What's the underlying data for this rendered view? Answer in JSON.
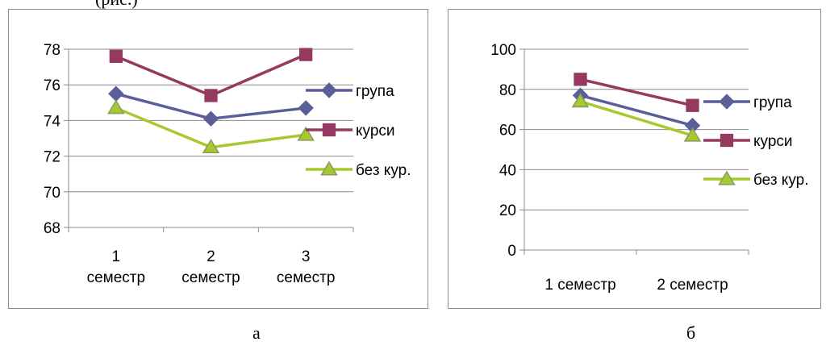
{
  "caption_fragment": "(рис.)",
  "panel_labels": [
    "а",
    "б"
  ],
  "colors": {
    "група": "#5b5f97",
    "курси": "#953a5e",
    "без кур.": "#a6c92f",
    "axis": "#8c8c8c",
    "grid": "#8c8c8c"
  },
  "chart_data": [
    {
      "type": "line",
      "title": "",
      "xlabel": "",
      "ylabel": "",
      "categories": [
        [
          "1",
          "семестр"
        ],
        [
          "2",
          "семестр"
        ],
        [
          "3",
          "семестр"
        ]
      ],
      "ylim": [
        68,
        78
      ],
      "yticks": [
        68,
        70,
        72,
        74,
        76,
        78
      ],
      "grid": true,
      "legend": "right",
      "series": [
        {
          "name": "група",
          "marker": "diamond",
          "values": [
            75.5,
            74.1,
            74.7
          ]
        },
        {
          "name": "курси",
          "marker": "square",
          "values": [
            77.6,
            75.4,
            77.7
          ]
        },
        {
          "name": "без кур.",
          "marker": "triangle",
          "values": [
            74.7,
            72.5,
            73.2
          ]
        }
      ]
    },
    {
      "type": "line",
      "title": "",
      "xlabel": "",
      "ylabel": "",
      "categories": [
        [
          "1 семестр"
        ],
        [
          "2 семестр"
        ]
      ],
      "ylim": [
        0,
        100
      ],
      "yticks": [
        0,
        20,
        40,
        60,
        80,
        100
      ],
      "grid": true,
      "legend": "right",
      "series": [
        {
          "name": "група",
          "marker": "diamond",
          "values": [
            77,
            62
          ]
        },
        {
          "name": "курси",
          "marker": "square",
          "values": [
            85,
            72
          ]
        },
        {
          "name": "без кур.",
          "marker": "triangle",
          "values": [
            74,
            57
          ]
        }
      ]
    }
  ]
}
